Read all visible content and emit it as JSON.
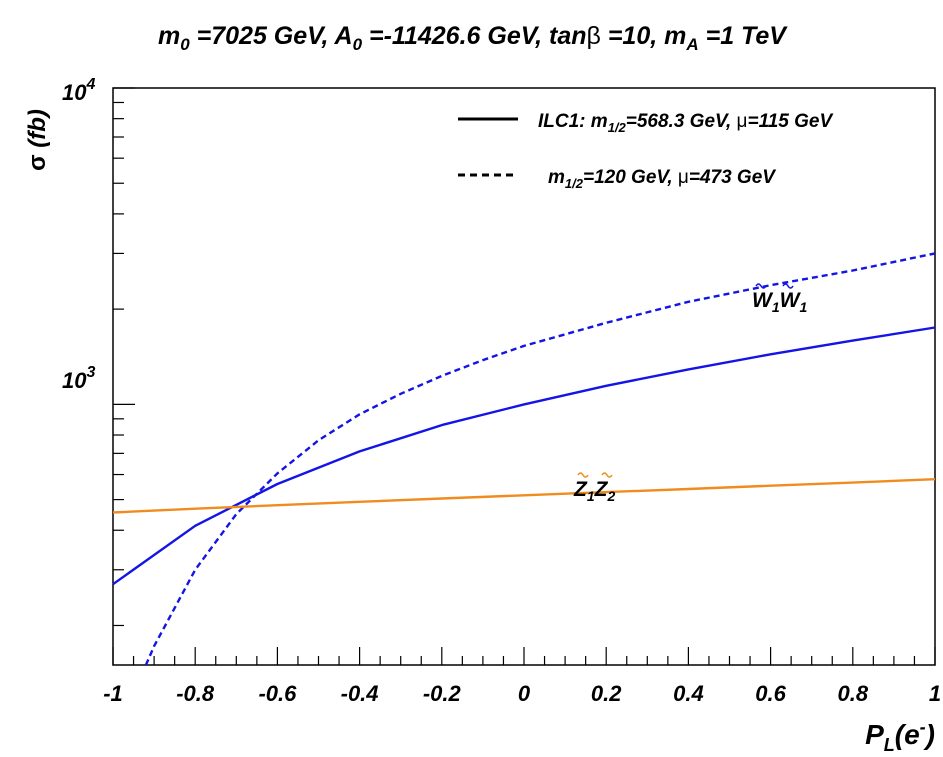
{
  "chart_data": {
    "type": "line",
    "title_parts": {
      "m0": "m",
      "m0_sub": "0",
      "m0_val": " =7025 GeV, ",
      "a0": "A",
      "a0_sub": "0",
      "a0_val": " =-11426.6 GeV, tan",
      "beta": "β",
      "tanb_val": " =10, ",
      "ma": "m",
      "ma_sub": "A",
      "ma_val": " =1 TeV"
    },
    "xlabel": {
      "main": "P",
      "sub": "L",
      "paren_open": "(e",
      "sup": "-",
      "paren_close": ")"
    },
    "ylabel": {
      "sigma": "σ",
      "rest": " (fb)"
    },
    "xlim": [
      -1,
      1
    ],
    "ylim": [
      150,
      10000
    ],
    "y_log": true,
    "x_ticks": [
      "-1",
      "-0.8",
      "-0.6",
      "-0.4",
      "-0.2",
      "0",
      "0.2",
      "0.4",
      "0.6",
      "0.8",
      "1"
    ],
    "y_ticks": [
      {
        "value": 1000,
        "base": "10",
        "exp": "3"
      },
      {
        "value": 10000,
        "base": "10",
        "exp": "4"
      }
    ],
    "legend": {
      "position": "top-right",
      "entries": [
        {
          "style": "solid",
          "p1": "ILC1: m",
          "sub": "1/2",
          "p2": "=568.3 GeV, ",
          "mu": "μ",
          "p3": "=115 GeV"
        },
        {
          "style": "dashed",
          "p1": "m",
          "sub": "1/2",
          "p2": "=120 GeV, ",
          "mu": "μ",
          "p3": "=473 GeV"
        }
      ]
    },
    "annotations": [
      {
        "name": "W1W1",
        "letter": "W",
        "sub": "1",
        "color": "#1414e6",
        "at": [
          0.62,
          1700
        ]
      },
      {
        "name": "Z1Z2",
        "letter": "Z",
        "sub": "2",
        "color": "#f08c1e",
        "at": [
          0.12,
          390
        ]
      }
    ],
    "colors": {
      "W1W1": "#1414e6",
      "Z1Z2": "#f08c1e"
    },
    "series": [
      {
        "name": "W1W1",
        "style": "solid",
        "color": "#1414e6",
        "x": [
          -1,
          -0.8,
          -0.6,
          -0.4,
          -0.2,
          0,
          0.2,
          0.4,
          0.6,
          0.8,
          1
        ],
        "y": [
          270,
          413,
          560,
          710,
          860,
          1000,
          1145,
          1290,
          1440,
          1590,
          1750
        ]
      },
      {
        "name": "W1W1",
        "style": "dashed",
        "color": "#1414e6",
        "x": [
          -0.92,
          -0.9,
          -0.8,
          -0.7,
          -0.6,
          -0.5,
          -0.4,
          -0.3,
          -0.2,
          -0.1,
          0,
          0.2,
          0.4,
          0.6,
          0.8,
          1
        ],
        "y": [
          150,
          172,
          300,
          450,
          605,
          770,
          930,
          1080,
          1230,
          1380,
          1530,
          1810,
          2110,
          2380,
          2650,
          3000
        ]
      },
      {
        "name": "Z1Z2",
        "style": "solid",
        "color": "#f08c1e",
        "x": [
          -1,
          -0.8,
          -0.6,
          -0.4,
          -0.2,
          0,
          0.2,
          0.4,
          0.6,
          0.8,
          1
        ],
        "y": [
          455,
          468,
          480,
          492,
          504,
          516,
          528,
          540,
          553,
          566,
          580
        ]
      }
    ]
  }
}
